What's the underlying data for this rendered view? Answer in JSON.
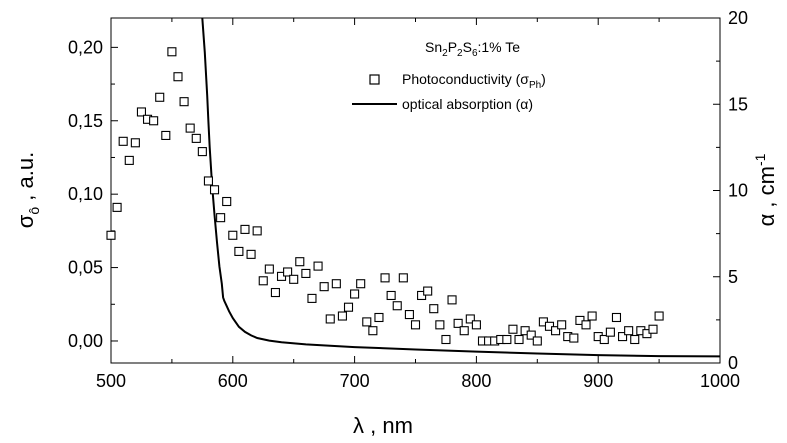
{
  "chart_data": {
    "type": "scatter",
    "annotation": {
      "base": "Sn",
      "s1": "2",
      "mid1": "P",
      "s2": "2",
      "mid2": "S",
      "s3": "6",
      "tail": ":1% Te"
    },
    "x_axis": {
      "label": "λ , nm",
      "range": [
        500,
        1000
      ],
      "ticks": [
        "500",
        "600",
        "700",
        "800",
        "900",
        "1000"
      ]
    },
    "y_left_axis": {
      "label_main": "σ",
      "label_sub": "ô",
      "label_tail": " , a.u.",
      "range": [
        -0.015,
        0.22
      ],
      "ticks": [
        "0,00",
        "0,05",
        "0,10",
        "0,15",
        "0,20"
      ]
    },
    "y_right_axis": {
      "label": "α , cm",
      "label_sup": "-1",
      "range": [
        0,
        20
      ],
      "ticks": [
        "0",
        "5",
        "10",
        "15",
        "20"
      ]
    },
    "legend": {
      "position": "top-right",
      "photoconductivity": {
        "text": "Photoconductivity (σ",
        "sub": "Ph",
        "close": ")"
      },
      "absorption": {
        "text": "optical absorption (α)"
      }
    },
    "series": [
      {
        "name": "Photoconductivity (σPh)",
        "axis": "left",
        "marker": "open-square",
        "points": [
          [
            500,
            0.072
          ],
          [
            505,
            0.091
          ],
          [
            510,
            0.136
          ],
          [
            515,
            0.123
          ],
          [
            520,
            0.135
          ],
          [
            525,
            0.156
          ],
          [
            530,
            0.151
          ],
          [
            535,
            0.15
          ],
          [
            540,
            0.166
          ],
          [
            545,
            0.14
          ],
          [
            550,
            0.197
          ],
          [
            555,
            0.18
          ],
          [
            560,
            0.163
          ],
          [
            565,
            0.145
          ],
          [
            570,
            0.138
          ],
          [
            575,
            0.129
          ],
          [
            580,
            0.109
          ],
          [
            585,
            0.103
          ],
          [
            590,
            0.084
          ],
          [
            595,
            0.095
          ],
          [
            600,
            0.072
          ],
          [
            605,
            0.061
          ],
          [
            610,
            0.076
          ],
          [
            615,
            0.059
          ],
          [
            620,
            0.075
          ],
          [
            625,
            0.041
          ],
          [
            630,
            0.049
          ],
          [
            635,
            0.033
          ],
          [
            640,
            0.044
          ],
          [
            645,
            0.047
          ],
          [
            650,
            0.042
          ],
          [
            655,
            0.054
          ],
          [
            660,
            0.046
          ],
          [
            665,
            0.029
          ],
          [
            670,
            0.051
          ],
          [
            675,
            0.037
          ],
          [
            680,
            0.015
          ],
          [
            685,
            0.039
          ],
          [
            690,
            0.017
          ],
          [
            695,
            0.023
          ],
          [
            700,
            0.032
          ],
          [
            705,
            0.039
          ],
          [
            710,
            0.013
          ],
          [
            715,
            0.007
          ],
          [
            720,
            0.016
          ],
          [
            725,
            0.043
          ],
          [
            730,
            0.031
          ],
          [
            735,
            0.024
          ],
          [
            740,
            0.043
          ],
          [
            745,
            0.018
          ],
          [
            750,
            0.011
          ],
          [
            755,
            0.031
          ],
          [
            760,
            0.034
          ],
          [
            765,
            0.022
          ],
          [
            770,
            0.011
          ],
          [
            775,
            0.001
          ],
          [
            780,
            0.028
          ],
          [
            785,
            0.012
          ],
          [
            790,
            0.007
          ],
          [
            795,
            0.015
          ],
          [
            800,
            0.011
          ],
          [
            805,
            0.0
          ],
          [
            810,
            0.0
          ],
          [
            815,
            0.0
          ],
          [
            820,
            0.001
          ],
          [
            825,
            0.001
          ],
          [
            830,
            0.008
          ],
          [
            835,
            0.001
          ],
          [
            840,
            0.007
          ],
          [
            845,
            0.004
          ],
          [
            850,
            0.0
          ],
          [
            855,
            0.013
          ],
          [
            860,
            0.01
          ],
          [
            865,
            0.007
          ],
          [
            870,
            0.011
          ],
          [
            875,
            0.003
          ],
          [
            880,
            0.002
          ],
          [
            885,
            0.014
          ],
          [
            890,
            0.011
          ],
          [
            895,
            0.017
          ],
          [
            900,
            0.003
          ],
          [
            905,
            0.001
          ],
          [
            910,
            0.006
          ],
          [
            915,
            0.016
          ],
          [
            920,
            0.003
          ],
          [
            925,
            0.007
          ],
          [
            930,
            0.001
          ],
          [
            935,
            0.007
          ],
          [
            940,
            0.005
          ],
          [
            945,
            0.008
          ],
          [
            950,
            0.017
          ]
        ]
      },
      {
        "name": "optical absorption (α)",
        "axis": "right",
        "style": "solid-line",
        "points": [
          [
            575,
            20.0
          ],
          [
            577,
            18.0
          ],
          [
            579,
            15.5
          ],
          [
            580,
            14.0
          ],
          [
            581,
            12.5
          ],
          [
            583,
            10.3
          ],
          [
            585,
            8.6
          ],
          [
            587,
            7.0
          ],
          [
            589,
            5.6
          ],
          [
            591,
            4.6
          ],
          [
            592,
            3.8
          ],
          [
            593,
            3.6
          ],
          [
            595,
            3.3
          ],
          [
            597,
            3.0
          ],
          [
            600,
            2.6
          ],
          [
            605,
            2.1
          ],
          [
            610,
            1.8
          ],
          [
            615,
            1.6
          ],
          [
            620,
            1.45
          ],
          [
            630,
            1.3
          ],
          [
            640,
            1.2
          ],
          [
            660,
            1.08
          ],
          [
            680,
            1.0
          ],
          [
            700,
            0.92
          ],
          [
            750,
            0.78
          ],
          [
            800,
            0.66
          ],
          [
            850,
            0.55
          ],
          [
            900,
            0.46
          ],
          [
            950,
            0.4
          ],
          [
            1000,
            0.38
          ]
        ]
      }
    ]
  }
}
